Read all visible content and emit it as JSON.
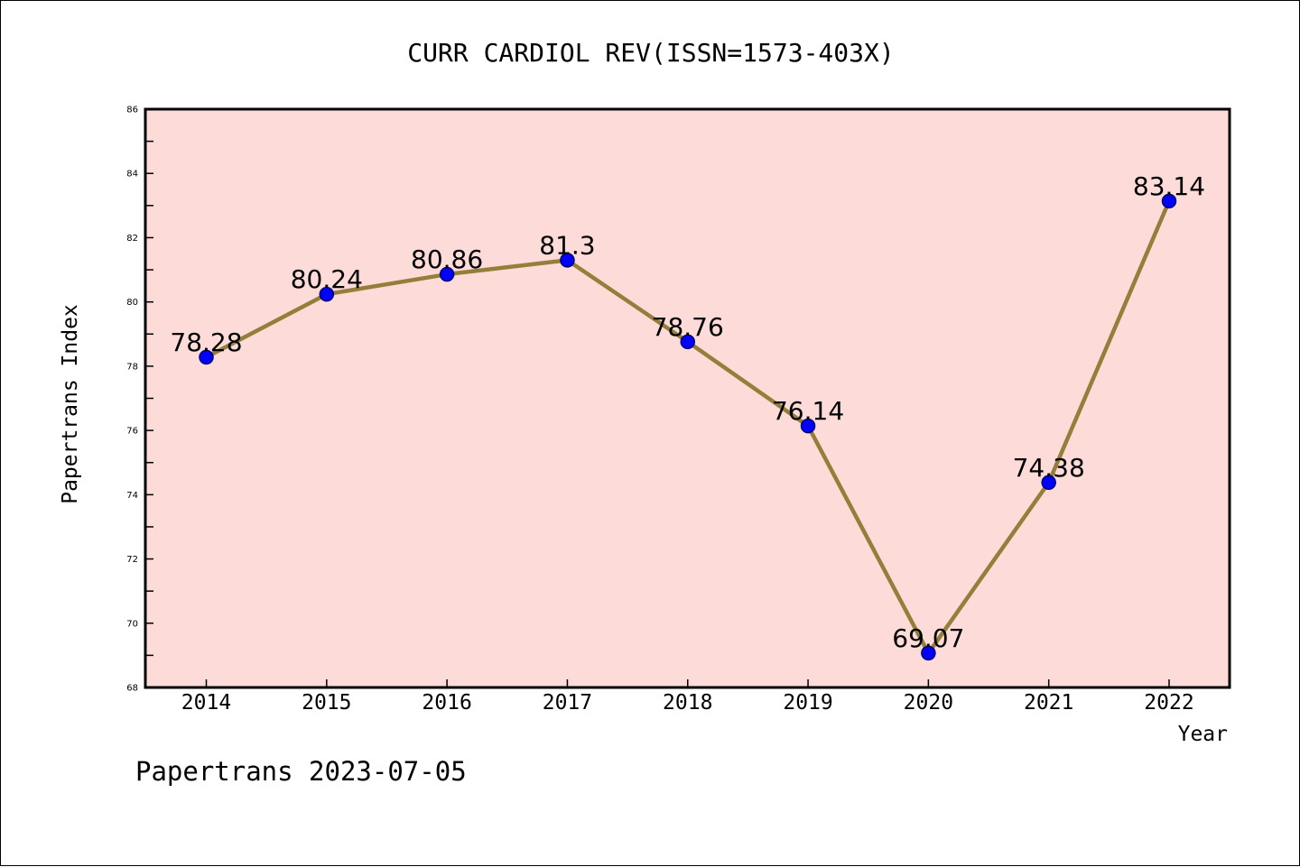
{
  "chart_data": {
    "type": "line",
    "title": "CURR CARDIOL REV(ISSN=1573-403X)",
    "xlabel": "Year",
    "ylabel": "Papertrans Index",
    "footer": "Papertrans 2023-07-05",
    "categories": [
      "2014",
      "2015",
      "2016",
      "2017",
      "2018",
      "2019",
      "2020",
      "2021",
      "2022"
    ],
    "series": [
      {
        "values": [
          78.28,
          80.24,
          80.86,
          81.3,
          78.76,
          76.14,
          69.07,
          74.38,
          83.14
        ],
        "labels": [
          "78.28",
          "80.24",
          "80.86",
          "81.3",
          "78.76",
          "76.14",
          "69.07",
          "74.38",
          "83.14"
        ]
      }
    ],
    "yticks": [
      "68",
      "70",
      "72",
      "74",
      "76",
      "78",
      "80",
      "82",
      "84",
      "86"
    ],
    "ylim": [
      68,
      86
    ],
    "grid": false,
    "colors": {
      "plot_background": "#fddbd9",
      "line": "#937f3a",
      "marker": "#0000ff",
      "marker_edge": "#00006e",
      "axis": "#000000"
    }
  }
}
